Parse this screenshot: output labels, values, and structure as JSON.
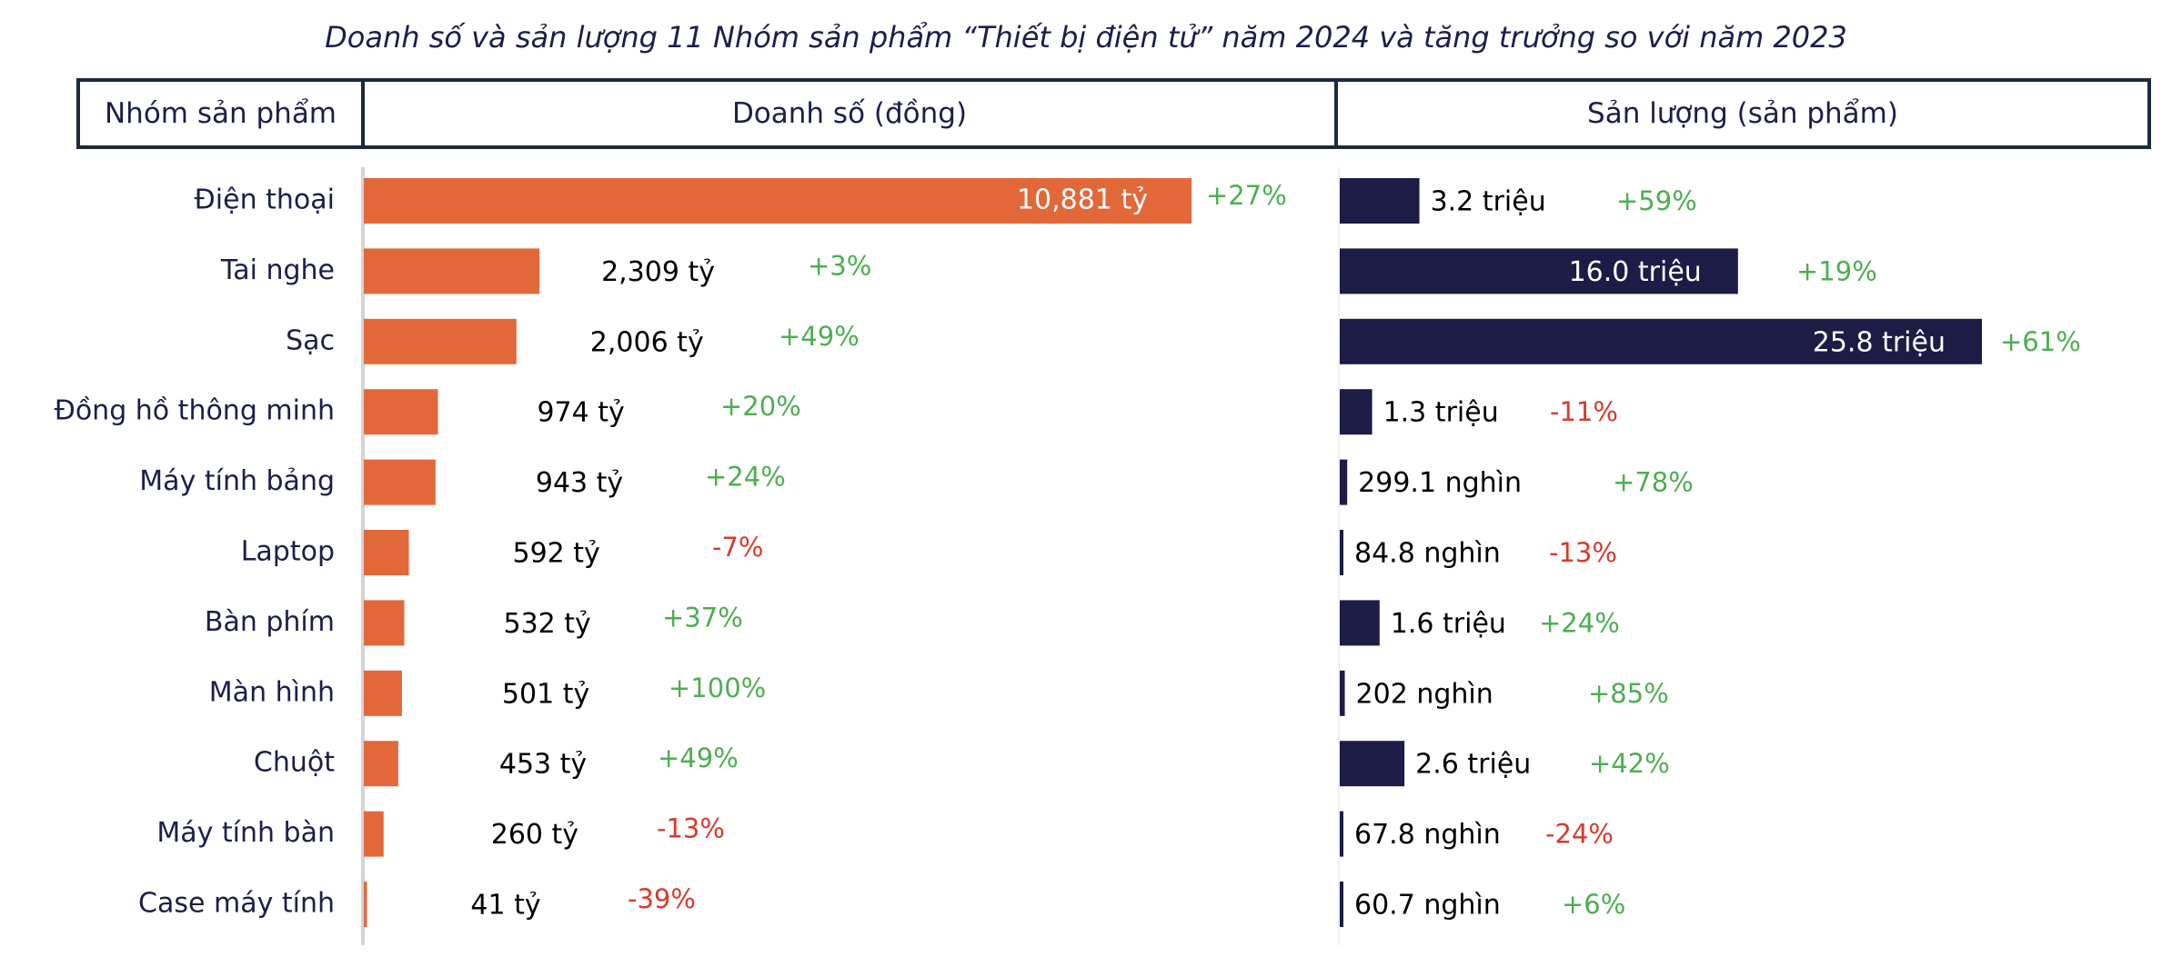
{
  "title": "Doanh số và sản lượng 11 Nhóm sản phẩm “Thiết bị điện tử” năm 2024 và tăng trưởng so với năm 2023",
  "headers": {
    "group": "Nhóm sản phẩm",
    "revenue": "Doanh số (đồng)",
    "volume": "Sản lượng (sản phẩm)"
  },
  "colors": {
    "revenue_bar": "#e2683a",
    "volume_bar": "#1c1c47",
    "positive": "#4caf50",
    "negative": "#d93a2b",
    "label_dark": "#1c1f4a"
  },
  "chart_data": {
    "type": "bar",
    "orientation": "horizontal",
    "categories": [
      "Điện thoại",
      "Tai nghe",
      "Sạc",
      "Đồng hồ thông minh",
      "Máy tính bảng",
      "Laptop",
      "Bàn phím",
      "Màn hình",
      "Chuột",
      "Máy tính bàn",
      "Case máy tính"
    ],
    "series": [
      {
        "name": "Doanh số (đồng)",
        "unit": "tỷ",
        "values": [
          10881,
          2309,
          2006,
          974,
          943,
          592,
          532,
          501,
          453,
          260,
          41
        ],
        "labels": [
          "10,881 tỷ",
          "2,309 tỷ",
          "2,006 tỷ",
          "974 tỷ",
          "943 tỷ",
          "592 tỷ",
          "532 tỷ",
          "501 tỷ",
          "453 tỷ",
          "260 tỷ",
          "41 tỷ"
        ],
        "growth": [
          "+27%",
          "+3%",
          "+49%",
          "+20%",
          "+24%",
          "-7%",
          "+37%",
          "+100%",
          "+49%",
          "-13%",
          "-39%"
        ]
      },
      {
        "name": "Sản lượng (sản phẩm)",
        "values": [
          3200000,
          16000000,
          25800000,
          1300000,
          299100,
          84800,
          1600000,
          202000,
          2600000,
          67800,
          60700
        ],
        "labels": [
          "3.2 triệu",
          "16.0 triệu",
          "25.8 triệu",
          "1.3 triệu",
          "299.1 nghìn",
          "84.8 nghìn",
          "1.6 triệu",
          "202 nghìn",
          "2.6 triệu",
          "67.8 nghìn",
          "60.7 nghìn"
        ],
        "growth": [
          "+59%",
          "+19%",
          "+61%",
          "-11%",
          "+78%",
          "-13%",
          "+24%",
          "+85%",
          "+42%",
          "-24%",
          "+6%"
        ]
      }
    ]
  }
}
